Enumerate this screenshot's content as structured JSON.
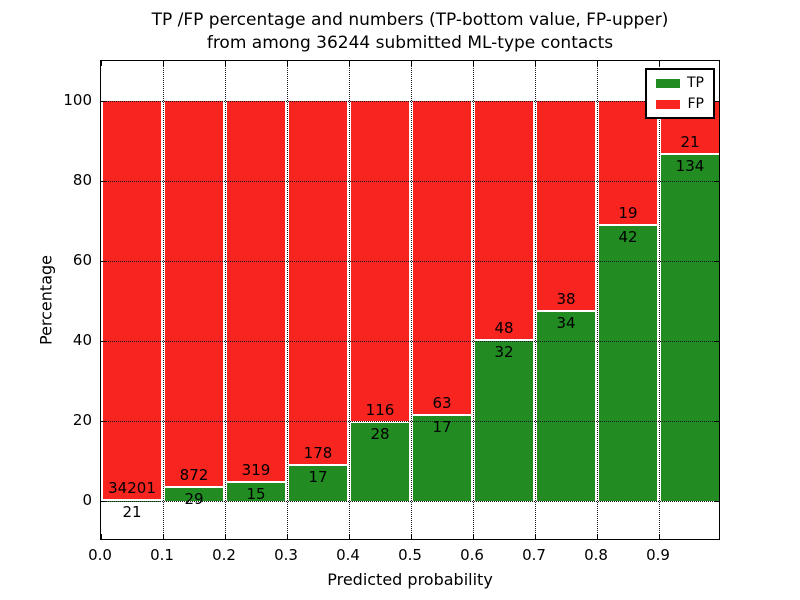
{
  "title": {
    "line1": "TP /FP percentage and numbers (TP-bottom value, FP-upper)",
    "line2": "from among 36244 submitted ML-type contacts"
  },
  "axes": {
    "xlabel": "Predicted probability",
    "ylabel": "Percentage",
    "xticks": [
      "0.0",
      "0.1",
      "0.2",
      "0.3",
      "0.4",
      "0.5",
      "0.6",
      "0.7",
      "0.8",
      "0.9"
    ],
    "yticks": [
      0,
      20,
      40,
      60,
      80,
      100
    ],
    "xlim": [
      0.0,
      1.0
    ],
    "ylim": [
      -10,
      110
    ],
    "grid": "dotted black, drawn above bars"
  },
  "legend": {
    "position": "upper right",
    "items": [
      {
        "label": "TP",
        "color": "#228b22"
      },
      {
        "label": "FP",
        "color": "#f82420"
      }
    ]
  },
  "chart_data": {
    "type": "bar",
    "stacked": true,
    "normalized": "each bin scaled to 100%",
    "title": "TP /FP percentage and numbers (TP-bottom value, FP-upper) from among 36244 submitted ML-type contacts",
    "xlabel": "Predicted probability",
    "ylabel": "Percentage",
    "bin_start": [
      0.0,
      0.1,
      0.2,
      0.3,
      0.4,
      0.5,
      0.6,
      0.7,
      0.8,
      0.9
    ],
    "bin_width": 0.1,
    "series": [
      {
        "name": "TP",
        "color": "#228b22",
        "counts": [
          21,
          29,
          15,
          17,
          28,
          17,
          32,
          34,
          42,
          134
        ]
      },
      {
        "name": "FP",
        "color": "#f82420",
        "counts": [
          34201,
          872,
          319,
          178,
          116,
          63,
          48,
          38,
          19,
          21
        ]
      }
    ],
    "tp_percent": [
      0.06,
      3.22,
      4.49,
      8.72,
      19.44,
      21.25,
      40.0,
      47.22,
      68.85,
      86.45
    ],
    "total_contacts": 36244
  }
}
